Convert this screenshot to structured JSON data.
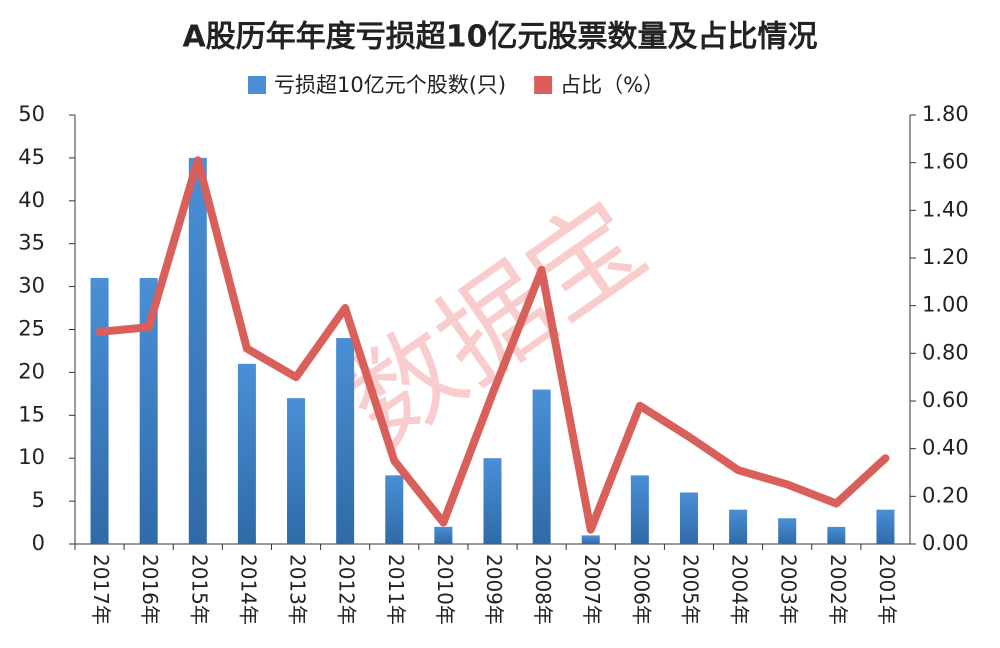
{
  "chart_data": {
    "type": "bar_line",
    "title": "A股历年年度亏损超10亿元股票数量及占比情况",
    "watermark": "数据宝",
    "categories": [
      "2017年",
      "2016年",
      "2015年",
      "2014年",
      "2013年",
      "2012年",
      "2011年",
      "2010年",
      "2009年",
      "2008年",
      "2007年",
      "2006年",
      "2005年",
      "2004年",
      "2003年",
      "2002年",
      "2001年"
    ],
    "series": [
      {
        "name": "亏损超10亿元个股数(只)",
        "color": "#4a8fd6",
        "type": "bar",
        "values": [
          31,
          31,
          45,
          21,
          17,
          24,
          8,
          2,
          10,
          18,
          1,
          8,
          6,
          4,
          3,
          2,
          4
        ]
      },
      {
        "name": "占比（%）",
        "color": "#d9605a",
        "type": "line",
        "axis": "y2",
        "values": [
          0.89,
          0.91,
          1.61,
          0.82,
          0.7,
          0.99,
          0.35,
          0.09,
          0.63,
          1.15,
          0.06,
          0.58,
          0.45,
          0.31,
          0.25,
          0.17,
          0.36
        ]
      }
    ],
    "ylim": [
      0,
      50
    ],
    "yticks": [
      0,
      5,
      10,
      15,
      20,
      25,
      30,
      35,
      40,
      45,
      50
    ],
    "y2lim": [
      0,
      1.8
    ],
    "y2ticks": [
      {
        "value": 0,
        "label": "0.00"
      },
      {
        "value": 0.2,
        "label": "0.20"
      },
      {
        "value": 0.4,
        "label": "0.40"
      },
      {
        "value": 0.6,
        "label": "0.60"
      },
      {
        "value": 0.8,
        "label": "0.80"
      },
      {
        "value": 1,
        "label": "1.00"
      },
      {
        "value": 1.2,
        "label": "1.20"
      },
      {
        "value": 1.4,
        "label": "1.40"
      },
      {
        "value": 1.6,
        "label": "1.60"
      },
      {
        "value": 1.8,
        "label": "1.80"
      }
    ]
  }
}
